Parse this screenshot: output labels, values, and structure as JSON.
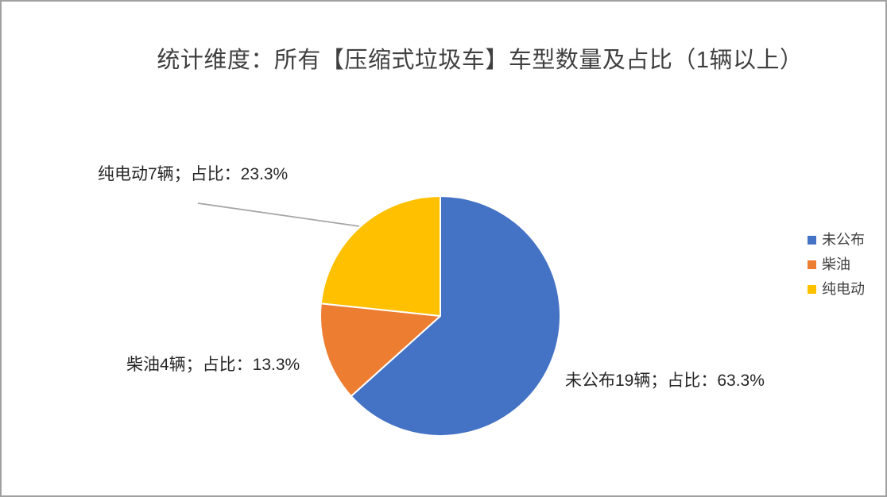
{
  "title": "统计维度：所有【压缩式垃圾车】车型数量及占比（1辆以上）",
  "chart_data": {
    "type": "pie",
    "title": "统计维度：所有【压缩式垃圾车】车型数量及占比（1辆以上）",
    "categories": [
      "未公布",
      "柴油",
      "纯电动"
    ],
    "values": [
      19,
      4,
      7
    ],
    "total": 30,
    "unit": "辆",
    "percents": [
      "63.3%",
      "13.3%",
      "23.3%"
    ],
    "colors": [
      "#4472C4",
      "#ED7D31",
      "#FFC000"
    ],
    "start_angle_deg": 0,
    "direction": "clockwise",
    "legend_position": "right",
    "data_labels": [
      "未公布19辆；占比：63.3%",
      "柴油4辆；占比：13.3%",
      "纯电动7辆；占比：23.3%"
    ],
    "leader_line_color": "#A6A6A6",
    "slice_border_color": "#FFFFFF"
  },
  "legend": {
    "items": [
      {
        "label": "未公布",
        "color": "#4472C4"
      },
      {
        "label": "柴油",
        "color": "#ED7D31"
      },
      {
        "label": "纯电动",
        "color": "#FFC000"
      }
    ]
  }
}
